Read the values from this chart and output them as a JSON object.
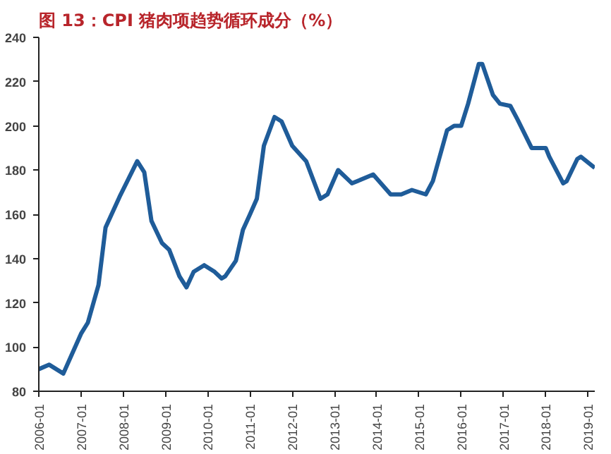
{
  "chart_data": {
    "type": "line",
    "title": "图 13：CPI 猪肉项趋势循环成分（%）",
    "x": [
      "2006-01",
      "2006-04",
      "2006-08",
      "2007-01",
      "2007-03",
      "2007-06",
      "2007-08",
      "2007-12",
      "2008-05",
      "2008-07",
      "2008-09",
      "2008-12",
      "2009-02",
      "2009-05",
      "2009-07",
      "2009-09",
      "2009-12",
      "2010-03",
      "2010-05",
      "2010-06",
      "2010-09",
      "2010-11",
      "2011-01",
      "2011-03",
      "2011-05",
      "2011-08",
      "2011-10",
      "2012-01",
      "2012-05",
      "2012-09",
      "2012-11",
      "2013-02",
      "2013-06",
      "2013-12",
      "2014-05",
      "2014-08",
      "2014-11",
      "2015-03",
      "2015-05",
      "2015-09",
      "2015-11",
      "2016-01",
      "2016-03",
      "2016-06",
      "2016-07",
      "2016-10",
      "2016-12",
      "2017-03",
      "2017-05",
      "2017-09",
      "2018-01",
      "2018-02",
      "2018-06",
      "2018-07",
      "2018-10",
      "2018-11",
      "2019-03"
    ],
    "series": [
      {
        "color": "#1f5c99",
        "values": [
          90,
          92,
          88,
          106,
          111,
          128,
          154,
          168,
          184,
          179,
          157,
          147,
          144,
          132,
          127,
          134,
          137,
          134,
          131,
          132,
          139,
          153,
          160,
          167,
          191,
          204,
          202,
          191,
          184,
          167,
          169,
          180,
          174,
          178,
          169,
          169,
          171,
          169,
          175,
          198,
          200,
          200,
          210,
          228,
          228,
          214,
          210,
          209,
          203,
          190,
          190,
          186,
          174,
          175,
          185,
          186,
          181
        ]
      }
    ],
    "xlim": [
      "2006-01",
      "2019-03"
    ],
    "xticks": [
      "2006-01",
      "2007-01",
      "2008-01",
      "2009-01",
      "2010-01",
      "2011-01",
      "2012-01",
      "2013-01",
      "2014-01",
      "2015-01",
      "2016-01",
      "2017-01",
      "2018-01",
      "2019-01"
    ],
    "ylim": [
      80,
      240
    ],
    "yticks": [
      80,
      100,
      120,
      140,
      160,
      180,
      200,
      220,
      240
    ],
    "grid": false,
    "marker": "none",
    "line_style": "solid"
  }
}
